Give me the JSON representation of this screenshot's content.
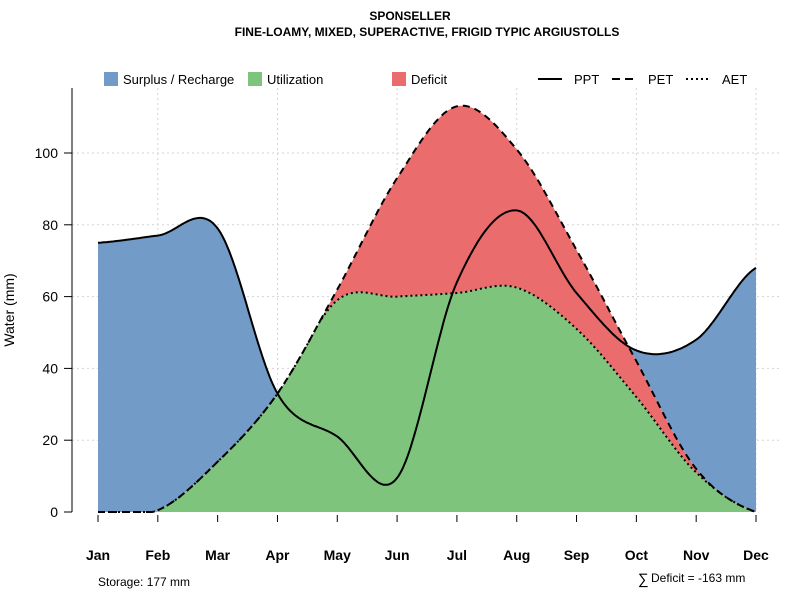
{
  "chart_data": {
    "type": "area",
    "title": "SPONSELLER",
    "subtitle": "FINE-LOAMY, MIXED, SUPERACTIVE, FRIGID TYPIC ARGIUSTOLLS",
    "xlabel": "",
    "ylabel": "Water (mm)",
    "ylim": [
      0,
      115
    ],
    "yticks": [
      0,
      20,
      40,
      60,
      80,
      100
    ],
    "grid": true,
    "legend_placement": "top",
    "categories": [
      "Jan",
      "Feb",
      "Mar",
      "Apr",
      "May",
      "Jun",
      "Jul",
      "Aug",
      "Sep",
      "Oct",
      "Nov",
      "Dec"
    ],
    "series": [
      {
        "name": "PPT",
        "style": "solid",
        "values": [
          75,
          77,
          79,
          33,
          21,
          9.5,
          64,
          84,
          61,
          45,
          48,
          68
        ]
      },
      {
        "name": "PET",
        "style": "dashed",
        "values": [
          0,
          0.5,
          14,
          33,
          62,
          93,
          113,
          101,
          73,
          42,
          12,
          0
        ]
      },
      {
        "name": "AET",
        "style": "dotted",
        "values": [
          0,
          0.5,
          14,
          33,
          59,
          60,
          61,
          62.5,
          51,
          32,
          11,
          0
        ]
      }
    ],
    "fills": [
      {
        "name": "Surplus / Recharge",
        "color": "#729BC7"
      },
      {
        "name": "Utilization",
        "color": "#7FC47C"
      },
      {
        "name": "Deficit",
        "color": "#EB6C6C"
      }
    ],
    "annotations": {
      "storage": "Storage: 177 mm",
      "deficit_symbol": "∑",
      "deficit": "Deficit = -163 mm"
    }
  }
}
